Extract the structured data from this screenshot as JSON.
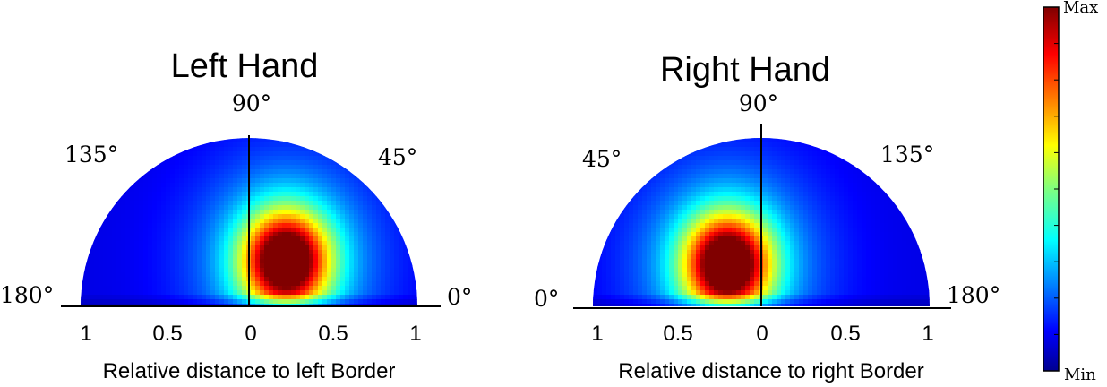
{
  "chart_data": [
    {
      "type": "heatmap",
      "subtype": "polar-semicircle",
      "title": "Left Hand",
      "xlabel": "Relative distance to left Border",
      "angle_labels": [
        "180°",
        "135°",
        "90°",
        "45°",
        "0°"
      ],
      "x_ticks": [
        "1",
        "0.5",
        "0",
        "0.5",
        "1"
      ],
      "xlim": [
        -1,
        1
      ],
      "radius": 1,
      "peak": {
        "x": 0.22,
        "y": 0.27,
        "angle_deg": 51,
        "r": 0.35
      },
      "colormap": "jet"
    },
    {
      "type": "heatmap",
      "subtype": "polar-semicircle",
      "title": "Right Hand",
      "xlabel": "Relative distance to right Border",
      "angle_labels": [
        "0°",
        "45°",
        "90°",
        "135°",
        "180°"
      ],
      "x_ticks": [
        "1",
        "0.5",
        "0",
        "0.5",
        "1"
      ],
      "xlim": [
        -1,
        1
      ],
      "radius": 1,
      "peak": {
        "x": -0.2,
        "y": 0.25,
        "angle_deg": 129,
        "r": 0.32
      },
      "colormap": "jet"
    }
  ],
  "colorbar": {
    "max_label": "Max",
    "min_label": "Min",
    "colormap": "jet"
  }
}
